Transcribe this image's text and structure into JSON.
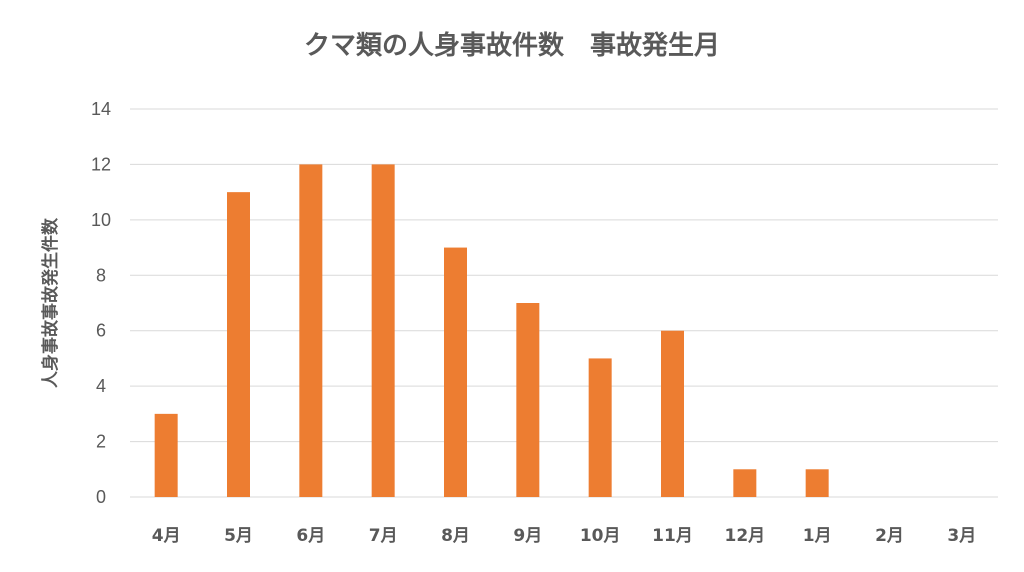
{
  "chart_data": {
    "type": "bar",
    "title": "クマ類の人身事故件数　事故発生月",
    "xlabel": "",
    "ylabel": "人身事故事故発生件数",
    "categories": [
      "4月",
      "5月",
      "6月",
      "7月",
      "8月",
      "9月",
      "10月",
      "11月",
      "12月",
      "1月",
      "2月",
      "3月"
    ],
    "values": [
      3,
      11,
      12,
      12,
      9,
      7,
      5,
      6,
      1,
      1,
      0,
      0
    ],
    "ylim": [
      0,
      14
    ],
    "yticks": [
      0,
      2,
      4,
      6,
      8,
      10,
      12,
      14
    ],
    "grid": true,
    "legend": "none",
    "bar_color": "#ED7D31"
  }
}
